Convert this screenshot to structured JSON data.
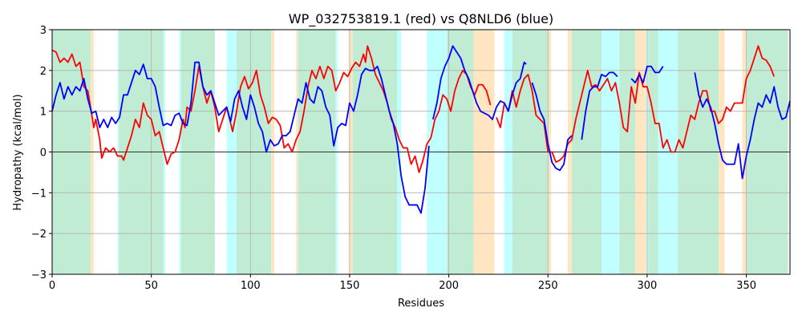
{
  "chart_data": {
    "type": "line",
    "title": "WP_032753819.1 (red) vs Q8NLD6 (blue)",
    "xlabel": "Residues",
    "ylabel": "Hydropathy (kcal/mol)",
    "xlim": [
      0,
      372
    ],
    "ylim": [
      -3,
      3
    ],
    "xticks": [
      0,
      50,
      100,
      150,
      200,
      250,
      300,
      350
    ],
    "yticks": [
      {
        "value": -3,
        "label": "−3"
      },
      {
        "value": -2,
        "label": "−2"
      },
      {
        "value": -1,
        "label": "−1"
      },
      0,
      1,
      2,
      3
    ],
    "grid": true,
    "hline": 0,
    "spans": [
      {
        "start": 0,
        "end": 19.4,
        "color": "#c0ecd4"
      },
      {
        "start": 19.4,
        "end": 21,
        "color": "#ffe6c0"
      },
      {
        "start": 33,
        "end": 33.6,
        "color": "#c0ffff"
      },
      {
        "start": 33.6,
        "end": 56,
        "color": "#c0ecd4"
      },
      {
        "start": 56,
        "end": 57,
        "color": "#c0ffff"
      },
      {
        "start": 64,
        "end": 65,
        "color": "#c0ffff"
      },
      {
        "start": 65,
        "end": 82,
        "color": "#c0ecd4"
      },
      {
        "start": 88,
        "end": 93,
        "color": "#c0ffff"
      },
      {
        "start": 93,
        "end": 110.5,
        "color": "#c0ecd4"
      },
      {
        "start": 110.5,
        "end": 112,
        "color": "#ffe6c0"
      },
      {
        "start": 123,
        "end": 124,
        "color": "#ffe6c0"
      },
      {
        "start": 124,
        "end": 143,
        "color": "#c0ecd4"
      },
      {
        "start": 143,
        "end": 144,
        "color": "#c0ffff"
      },
      {
        "start": 149.5,
        "end": 151.5,
        "color": "#ffe6c0"
      },
      {
        "start": 151.5,
        "end": 174,
        "color": "#c0ecd4"
      },
      {
        "start": 174,
        "end": 176,
        "color": "#c0ffff"
      },
      {
        "start": 189,
        "end": 199,
        "color": "#c0ffff"
      },
      {
        "start": 199,
        "end": 212.5,
        "color": "#c0ecd4"
      },
      {
        "start": 212.5,
        "end": 223,
        "color": "#ffe6c0"
      },
      {
        "start": 228,
        "end": 232,
        "color": "#c0ffff"
      },
      {
        "start": 232,
        "end": 250,
        "color": "#c0ecd4"
      },
      {
        "start": 250,
        "end": 251.5,
        "color": "#ffe6c0"
      },
      {
        "start": 260,
        "end": 262,
        "color": "#ffe6c0"
      },
      {
        "start": 262,
        "end": 277,
        "color": "#c0ecd4"
      },
      {
        "start": 277,
        "end": 286,
        "color": "#c0ffff"
      },
      {
        "start": 286,
        "end": 294,
        "color": "#c0ecd4"
      },
      {
        "start": 294,
        "end": 299.5,
        "color": "#ffe6c0"
      },
      {
        "start": 299.5,
        "end": 300.5,
        "color": "#c0ffff"
      },
      {
        "start": 300.5,
        "end": 305.5,
        "color": "#c0ecd4"
      },
      {
        "start": 305.5,
        "end": 315.5,
        "color": "#c0ffff"
      },
      {
        "start": 315.5,
        "end": 336,
        "color": "#c0ecd4"
      },
      {
        "start": 336,
        "end": 339,
        "color": "#ffe6c0"
      },
      {
        "start": 348,
        "end": 350,
        "color": "#ffe6c0"
      },
      {
        "start": 350,
        "end": 371,
        "color": "#c0ecd4"
      }
    ],
    "series": [
      {
        "color": "#ff0000",
        "x": [
          0,
          2,
          4,
          6,
          8,
          10,
          12,
          14,
          16,
          18,
          20,
          21,
          22,
          24,
          25,
          27,
          29,
          31,
          33,
          35,
          36,
          38,
          40,
          42,
          44,
          46,
          48,
          50,
          52,
          54,
          56,
          58,
          60,
          62,
          64,
          66,
          67,
          68,
          70,
          72,
          74,
          76,
          78,
          80,
          82,
          84,
          86,
          88,
          90,
          91,
          93,
          95,
          97,
          99,
          101,
          103,
          105,
          107,
          109,
          111,
          113,
          115,
          117,
          119,
          121,
          123,
          125,
          127,
          129,
          131,
          133,
          135,
          137,
          139,
          141,
          143,
          145,
          147,
          149,
          151,
          153,
          155,
          157,
          158,
          159,
          161,
          163,
          165,
          167,
          169,
          171,
          173,
          175,
          177,
          179,
          181,
          183,
          185,
          187,
          189,
          191,
          193,
          195,
          197,
          199,
          201,
          203,
          205,
          207,
          209,
          211,
          213,
          215,
          217,
          219,
          221,
          222,
          224,
          226,
          228,
          230,
          232,
          234,
          236,
          238,
          240,
          242,
          244,
          246,
          248,
          250,
          252,
          254,
          256,
          258,
          260,
          262,
          264,
          266,
          268,
          270,
          272,
          274,
          276,
          278,
          280,
          282,
          284,
          286,
          288,
          290,
          292,
          294,
          296,
          298,
          300,
          302,
          304,
          306,
          308,
          310,
          312,
          314,
          316,
          318,
          320,
          322,
          324,
          326,
          328,
          330,
          332,
          334,
          336,
          338,
          340,
          342,
          344,
          346,
          348,
          350,
          352,
          354,
          356,
          358,
          360,
          362,
          364
        ],
        "values": [
          2.5,
          2.45,
          2.2,
          2.3,
          2.2,
          2.4,
          2.1,
          2.2,
          1.6,
          1.5,
          0.9,
          0.6,
          0.8,
          0.3,
          -0.15,
          0.1,
          0.0,
          0.1,
          -0.1,
          -0.1,
          -0.2,
          0.1,
          0.4,
          0.8,
          0.6,
          1.2,
          0.9,
          0.8,
          0.4,
          0.5,
          0.1,
          -0.3,
          -0.05,
          0,
          0.3,
          0.8,
          0.6,
          1.1,
          1.0,
          1.5,
          2.1,
          1.6,
          1.2,
          1.5,
          1.1,
          0.5,
          0.8,
          1.1,
          0.7,
          0.5,
          1.0,
          1.6,
          1.85,
          1.55,
          1.7,
          2.0,
          1.4,
          1.1,
          0.7,
          0.85,
          0.8,
          0.65,
          0.1,
          0.2,
          0.0,
          0.3,
          0.5,
          1.0,
          1.6,
          2.0,
          1.8,
          2.1,
          1.8,
          2.1,
          2.0,
          1.5,
          1.7,
          1.95,
          1.85,
          2.05,
          2.2,
          2.1,
          2.4,
          2.2,
          2.6,
          2.3,
          1.9,
          1.7,
          1.5,
          1.2,
          0.8,
          0.6,
          0.3,
          0.1,
          0.1,
          -0.3,
          -0.1,
          -0.5,
          -0.2,
          0.2,
          0.35,
          0.8,
          1.0,
          1.4,
          1.3,
          1.0,
          1.5,
          1.8,
          2.0,
          1.9,
          1.6,
          1.4,
          1.65,
          1.65,
          1.5,
          1.15,
          null,
          0.85,
          0.6,
          1.2,
          1.0,
          1.5,
          1.1,
          1.5,
          1.8,
          1.9,
          1.5,
          0.9,
          0.8,
          0.7,
          0.0,
          0.0,
          -0.25,
          -0.2,
          -0.1,
          0.2,
          0.3,
          0.8,
          1.2,
          1.6,
          2.0,
          1.6,
          1.65,
          1.5,
          1.65,
          1.8,
          1.5,
          1.7,
          1.2,
          0.6,
          0.5,
          1.6,
          1.2,
          1.95,
          1.6,
          1.6,
          1.2,
          0.7,
          0.7,
          0.1,
          0.3,
          0.0,
          0.0,
          0.3,
          0.1,
          0.5,
          0.9,
          0.8,
          1.2,
          1.5,
          1.5,
          1.0,
          1.0,
          0.7,
          0.8,
          1.1,
          1.0,
          1.2,
          1.2,
          1.2,
          1.8,
          2.0,
          2.3,
          2.6,
          2.3,
          2.25,
          2.1,
          1.85
        ]
      },
      {
        "color": "#0000ff",
        "x": [
          0,
          2,
          4,
          6,
          8,
          10,
          12,
          14,
          16,
          18,
          20,
          22,
          24,
          26,
          28,
          30,
          32,
          34,
          36,
          38,
          40,
          42,
          44,
          46,
          48,
          50,
          52,
          54,
          56,
          58,
          60,
          62,
          64,
          66,
          68,
          70,
          72,
          74,
          76,
          78,
          80,
          82,
          84,
          86,
          88,
          90,
          92,
          94,
          96,
          98,
          100,
          102,
          104,
          106,
          108,
          110,
          112,
          114,
          116,
          118,
          120,
          122,
          124,
          126,
          128,
          130,
          132,
          134,
          136,
          138,
          140,
          142,
          144,
          146,
          148,
          150,
          152,
          154,
          156,
          158,
          160,
          162,
          164,
          166,
          168,
          170,
          172,
          174,
          176,
          178,
          180,
          182,
          184,
          186,
          188,
          190,
          191,
          192,
          194,
          196,
          198,
          200,
          202,
          204,
          206,
          208,
          210,
          212,
          214,
          216,
          218,
          220,
          222,
          224,
          226,
          228,
          230,
          232,
          234,
          236,
          238,
          239,
          240,
          242,
          244,
          246,
          248,
          250,
          252,
          254,
          256,
          258,
          260,
          262,
          263,
          267,
          269,
          271,
          273,
          275,
          277,
          279,
          281,
          283,
          285,
          286,
          292,
          294,
          296,
          298,
          300,
          302,
          304,
          306,
          308,
          309,
          324,
          326,
          328,
          330,
          332,
          334,
          336,
          338,
          340,
          342,
          344,
          346,
          348,
          350,
          352,
          354,
          356,
          358,
          360,
          362,
          364,
          366,
          368,
          370,
          372
        ],
        "values": [
          1.0,
          1.4,
          1.7,
          1.3,
          1.6,
          1.4,
          1.6,
          1.5,
          1.8,
          1.3,
          0.95,
          1.0,
          0.6,
          0.8,
          0.6,
          0.85,
          0.7,
          0.85,
          1.4,
          1.4,
          1.7,
          2.0,
          1.9,
          2.15,
          1.8,
          1.8,
          1.6,
          1.1,
          0.65,
          0.7,
          0.65,
          0.9,
          0.95,
          0.7,
          0.65,
          1.2,
          2.2,
          2.2,
          1.6,
          1.4,
          1.5,
          1.2,
          0.9,
          1.0,
          1.1,
          0.75,
          1.3,
          1.5,
          1.1,
          0.8,
          1.4,
          1.1,
          0.7,
          0.5,
          0.0,
          0.3,
          0.15,
          0.2,
          0.4,
          0.4,
          0.5,
          0.9,
          1.3,
          1.2,
          1.7,
          1.3,
          1.2,
          1.6,
          1.5,
          1.1,
          0.9,
          0.15,
          0.6,
          0.7,
          0.65,
          1.2,
          1.0,
          1.4,
          1.9,
          2.05,
          2.0,
          2.0,
          2.1,
          1.8,
          1.4,
          1.0,
          0.7,
          0.2,
          -0.6,
          -1.1,
          -1.3,
          -1.3,
          -1.3,
          -1.5,
          -0.9,
          0.15,
          null,
          0.8,
          1.2,
          1.8,
          2.1,
          2.3,
          2.6,
          2.45,
          2.3,
          2.0,
          1.8,
          1.5,
          1.2,
          1.0,
          0.95,
          0.9,
          0.8,
          1.1,
          1.25,
          1.2,
          1.0,
          1.4,
          1.7,
          1.8,
          2.2,
          2.15,
          null,
          1.7,
          1.4,
          1.0,
          0.8,
          0.2,
          -0.25,
          -0.4,
          -0.45,
          -0.3,
          0.3,
          0.4,
          null,
          0.3,
          1.0,
          1.5,
          1.6,
          1.6,
          1.9,
          1.85,
          1.95,
          1.95,
          1.85,
          null,
          1.8,
          1.7,
          1.9,
          1.7,
          2.1,
          2.1,
          1.95,
          1.95,
          2.1,
          null,
          1.95,
          1.4,
          1.1,
          1.3,
          1.1,
          0.7,
          0.2,
          -0.2,
          -0.3,
          -0.3,
          -0.3,
          0.2,
          -0.65,
          -0.1,
          0.3,
          0.8,
          1.2,
          1.1,
          1.4,
          1.2,
          1.6,
          1.1,
          0.8,
          0.85,
          1.25
        ]
      }
    ]
  }
}
